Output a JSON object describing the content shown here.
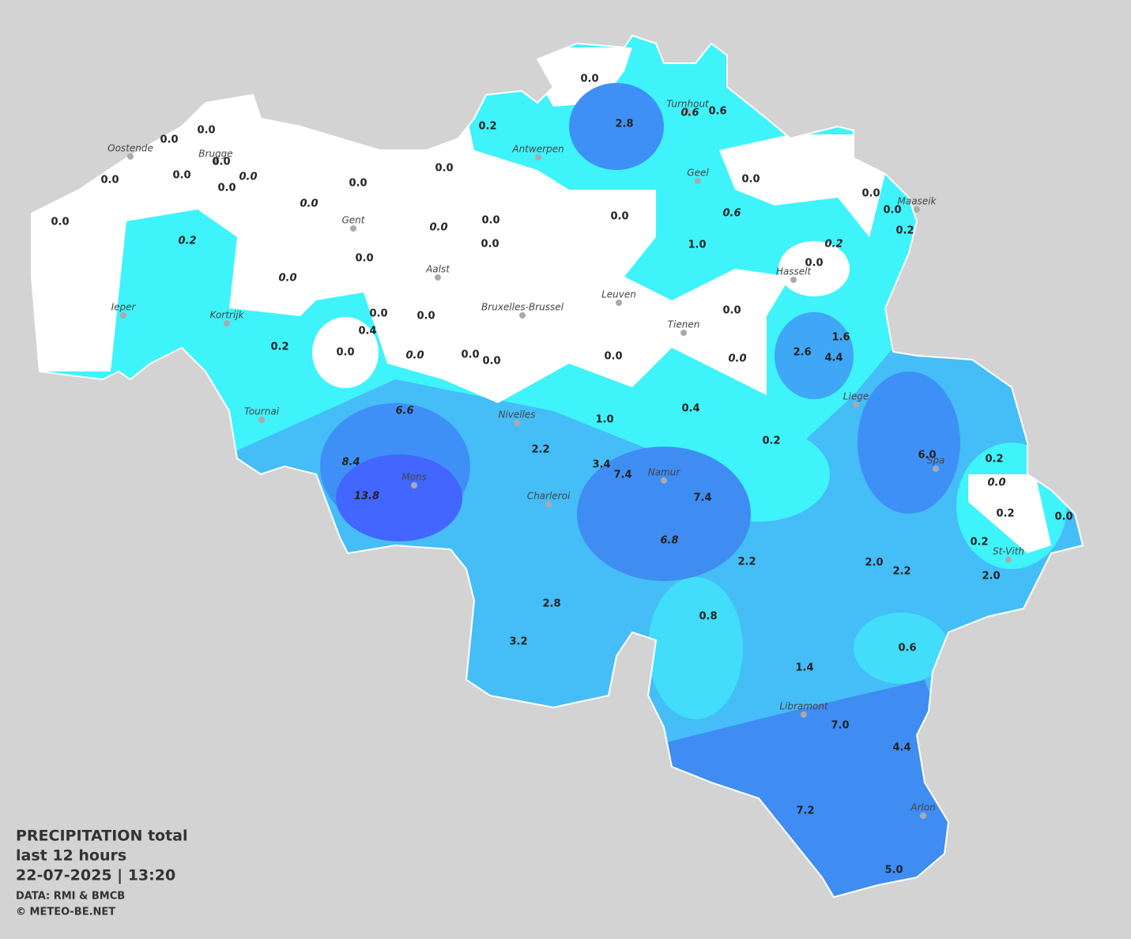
{
  "title": {
    "lines": [
      "PRECIPITATION total",
      "last 12 hours",
      "22-07-2025  |  13:20"
    ]
  },
  "credits": [
    "DATA: RMI & BMCB",
    "© METEO-BE.NET"
  ],
  "cities": [
    "Oostende",
    "Brugge",
    "Gent",
    "Antwerpen",
    "Turnhout",
    "Geel",
    "Maaseik",
    "Hasselt",
    "Aalst",
    "Ieper",
    "Kortrijk",
    "Bruxelles-Brussel",
    "Leuven",
    "Tienen",
    "Liege",
    "Tournai",
    "Nivelles",
    "Mons",
    "Charleroi",
    "Namur",
    "Spa",
    "St-Vith",
    "Libramont",
    "Arlon"
  ],
  "values": [
    {
      "label": "0.0",
      "italic": false
    },
    {
      "label": "2.8",
      "italic": false
    },
    {
      "label": "0.6",
      "italic": true
    },
    {
      "label": "0.6",
      "italic": false
    },
    {
      "label": "0.2",
      "italic": false
    },
    {
      "label": "0.0",
      "italic": false
    },
    {
      "label": "0.0",
      "italic": false
    },
    {
      "label": "0.0",
      "italic": false
    },
    {
      "label": "0.0",
      "italic": false
    },
    {
      "label": "0.0",
      "italic": false
    },
    {
      "label": "0.0",
      "italic": true
    },
    {
      "label": "0.0",
      "italic": false
    },
    {
      "label": "0.0",
      "italic": false
    },
    {
      "label": "0.0",
      "italic": false
    },
    {
      "label": "0.0",
      "italic": false
    },
    {
      "label": "0.0",
      "italic": false
    },
    {
      "label": "0.0",
      "italic": false
    },
    {
      "label": "0.6",
      "italic": true
    },
    {
      "label": "0.0",
      "italic": true
    },
    {
      "label": "0.0",
      "italic": false
    },
    {
      "label": "0.0",
      "italic": false
    },
    {
      "label": "0.0",
      "italic": true
    },
    {
      "label": "0.0",
      "italic": false
    },
    {
      "label": "0.2",
      "italic": false
    },
    {
      "label": "0.2",
      "italic": true
    },
    {
      "label": "0.2",
      "italic": true
    },
    {
      "label": "0.0",
      "italic": false
    },
    {
      "label": "1.0",
      "italic": false
    },
    {
      "label": "0.0",
      "italic": false
    },
    {
      "label": "0.0",
      "italic": false
    },
    {
      "label": "0.0",
      "italic": true
    },
    {
      "label": "0.0",
      "italic": false
    },
    {
      "label": "0.0",
      "italic": false
    },
    {
      "label": "0.0",
      "italic": false
    },
    {
      "label": "0.4",
      "italic": false
    },
    {
      "label": "0.2",
      "italic": false
    },
    {
      "label": "1.6",
      "italic": false
    },
    {
      "label": "0.0",
      "italic": false
    },
    {
      "label": "2.6",
      "italic": false
    },
    {
      "label": "4.4",
      "italic": false
    },
    {
      "label": "0.0",
      "italic": true
    },
    {
      "label": "0.0",
      "italic": false
    },
    {
      "label": "0.0",
      "italic": false
    },
    {
      "label": "0.0",
      "italic": false
    },
    {
      "label": "0.0",
      "italic": true
    },
    {
      "label": "6.6",
      "italic": true
    },
    {
      "label": "0.4",
      "italic": false
    },
    {
      "label": "1.0",
      "italic": false
    },
    {
      "label": "0.2",
      "italic": false
    },
    {
      "label": "2.2",
      "italic": false
    },
    {
      "label": "6.0",
      "italic": false
    },
    {
      "label": "0.2",
      "italic": false
    },
    {
      "label": "8.4",
      "italic": true
    },
    {
      "label": "3.4",
      "italic": false
    },
    {
      "label": "7.4",
      "italic": false
    },
    {
      "label": "0.0",
      "italic": true
    },
    {
      "label": "13.8",
      "italic": true
    },
    {
      "label": "7.4",
      "italic": false
    },
    {
      "label": "0.2",
      "italic": false
    },
    {
      "label": "0.0",
      "italic": false
    },
    {
      "label": "6.8",
      "italic": true
    },
    {
      "label": "0.2",
      "italic": false
    },
    {
      "label": "2.2",
      "italic": false
    },
    {
      "label": "2.0",
      "italic": false
    },
    {
      "label": "2.2",
      "italic": false
    },
    {
      "label": "2.0",
      "italic": false
    },
    {
      "label": "2.8",
      "italic": false
    },
    {
      "label": "0.8",
      "italic": false
    },
    {
      "label": "3.2",
      "italic": false
    },
    {
      "label": "0.6",
      "italic": false
    },
    {
      "label": "1.4",
      "italic": false
    },
    {
      "label": "7.0",
      "italic": false
    },
    {
      "label": "4.4",
      "italic": false
    },
    {
      "label": "7.2",
      "italic": false
    },
    {
      "label": "5.0",
      "italic": false
    }
  ]
}
